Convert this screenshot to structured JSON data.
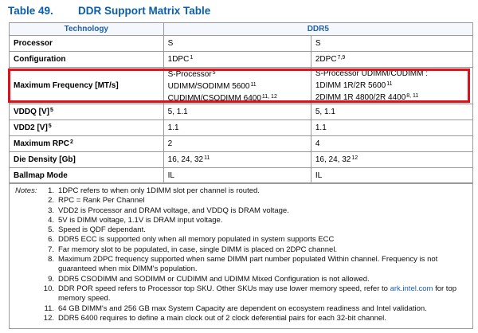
{
  "caption": {
    "number": "Table 49.",
    "title": "DDR Support Matrix Table"
  },
  "header": {
    "technology": "Technology",
    "ddr": "DDR5"
  },
  "rows": [
    {
      "label": "Processor",
      "label_sup": "",
      "col1": [
        {
          "text": "S",
          "sup": ""
        }
      ],
      "col2": [
        {
          "text": "S",
          "sup": ""
        }
      ]
    },
    {
      "label": "Configuration",
      "label_sup": "",
      "col1": [
        {
          "text": "1DPC",
          "sup": "1"
        }
      ],
      "col2": [
        {
          "text": "2DPC",
          "sup": "7,9"
        }
      ]
    },
    {
      "label": "Maximum Frequency [MT/s]",
      "label_sup": "",
      "col1": [
        {
          "text": "S-Processor",
          "sup": "5"
        },
        {
          "text": "UDIMM/SODIMM 5600",
          "sup": "11"
        },
        {
          "text": "CUDIMM/CSODIMM 6400",
          "sup": "11, 12"
        }
      ],
      "col2": [
        {
          "text": "S-Processor UDIMM/CUDIMM :",
          "sup": ""
        },
        {
          "text": "1DIMM 1R/2R 5600",
          "sup": "11"
        },
        {
          "text": "2DIMM 1R 4800/2R 4400",
          "sup": "8, 11"
        }
      ]
    },
    {
      "label": "VDDQ [V]",
      "label_sup": "5",
      "col1": [
        {
          "text": "5, 1.1",
          "sup": ""
        }
      ],
      "col2": [
        {
          "text": "5, 1.1",
          "sup": ""
        }
      ]
    },
    {
      "label": "VDD2 [V]",
      "label_sup": "5",
      "col1": [
        {
          "text": "1.1",
          "sup": ""
        }
      ],
      "col2": [
        {
          "text": "1.1",
          "sup": ""
        }
      ]
    },
    {
      "label": "Maximum RPC",
      "label_sup": "2",
      "col1": [
        {
          "text": "2",
          "sup": ""
        }
      ],
      "col2": [
        {
          "text": "4",
          "sup": ""
        }
      ]
    },
    {
      "label": "Die Density [Gb]",
      "label_sup": "",
      "col1": [
        {
          "text": "16, 24, 32",
          "sup": "11"
        }
      ],
      "col2": [
        {
          "text": "16, 24, 32",
          "sup": "12"
        }
      ]
    },
    {
      "label": "Ballmap Mode",
      "label_sup": "",
      "col1": [
        {
          "text": "IL",
          "sup": ""
        }
      ],
      "col2": [
        {
          "text": "IL",
          "sup": ""
        }
      ]
    }
  ],
  "notes": {
    "title": "Notes:",
    "items": [
      {
        "n": "1.",
        "t": "1DPC refers to when only 1DIMM slot per channel is routed."
      },
      {
        "n": "2.",
        "t": "RPC = Rank Per Channel"
      },
      {
        "n": "3.",
        "t": "VDD2 is Processor and DRAM voltage, and VDDQ is DRAM voltage."
      },
      {
        "n": "4.",
        "t": "5V is DIMM voltage, 1.1V is DRAM input voltage."
      },
      {
        "n": "5.",
        "t": "Speed is QDF dependant."
      },
      {
        "n": "6.",
        "t": "DDR5 ECC is supported only when all memory populated in system supports ECC"
      },
      {
        "n": "7.",
        "t": "Far memory slot to be populated, in case, single DIMM is placed on 2DPC channel."
      },
      {
        "n": "8.",
        "t": "Maximum 2DPC frequency supported when same DIMM part number populated Within channel. Frequency is not guaranteed when mix DIMM's population."
      },
      {
        "n": "9.",
        "t": "DDR5 CSODIMM and SODIMM or CUDIMM and UDIMM Mixed Configuration is not allowed."
      },
      {
        "n": "10.",
        "t": "DDR POR speed refers to Processor top SKU. Other SKUs may use lower memory speed, refer to ",
        "link": "ark.intel.com",
        "after": " for top memory speed."
      },
      {
        "n": "11.",
        "t": "64 GB DIMM's and 256 GB max System Capacity are dependent on ecosystem readiness and Intel validation."
      },
      {
        "n": "12.",
        "t": "DDR5 6400 requires to define a main clock out of 2 clock deferential pairs for each 32-bit channel."
      }
    ]
  },
  "colors": {
    "caption": "#0a5fa8",
    "header_text": "#1f5fa6",
    "highlight": "#e0101b",
    "link": "#1a5fb4"
  }
}
